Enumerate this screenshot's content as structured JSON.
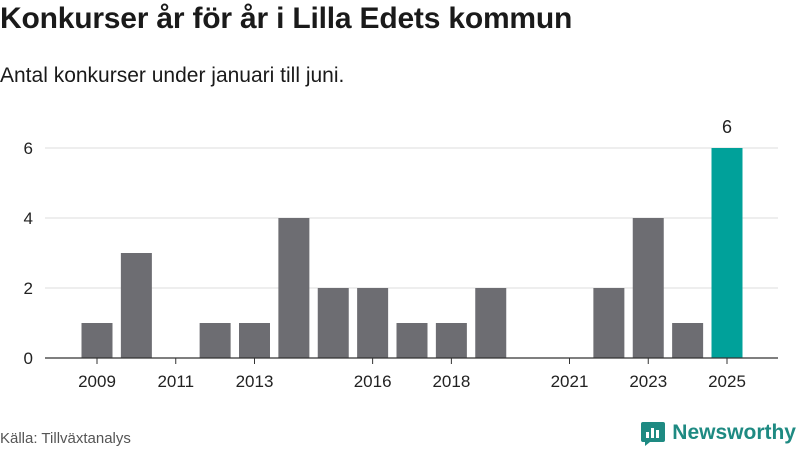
{
  "header": {
    "title": "Konkurser år för år i Lilla Edets kommun",
    "subtitle": "Antal konkurser under januari till juni."
  },
  "footer": {
    "source": "Källa: Tillväxtanalys",
    "brand": "Newsworthy"
  },
  "colors": {
    "bar": "#6d6d72",
    "highlight": "#00a19a",
    "grid": "#dddddd",
    "axis": "#333333",
    "brand": "#1e8a82"
  },
  "icons": {
    "brand_logo": "newsworthy-logo-icon"
  },
  "chart_data": {
    "type": "bar",
    "title": "Konkurser år för år i Lilla Edets kommun",
    "subtitle": "Antal konkurser under januari till juni.",
    "categories": [
      "2009",
      "2010",
      "2011",
      "2012",
      "2013",
      "2014",
      "2015",
      "2016",
      "2017",
      "2018",
      "2019",
      "2020",
      "2021",
      "2022",
      "2023",
      "2024",
      "2025"
    ],
    "values": [
      1,
      3,
      0,
      1,
      1,
      4,
      2,
      2,
      1,
      1,
      2,
      0,
      0,
      2,
      4,
      1,
      6
    ],
    "x_tick_labels": [
      "2009",
      "2011",
      "2013",
      "2016",
      "2018",
      "2021",
      "2023",
      "2025"
    ],
    "y_ticks": [
      0,
      2,
      4,
      6
    ],
    "ylim": [
      0,
      6
    ],
    "highlight_category": "2025",
    "data_labels": [
      {
        "category": "2025",
        "text": "6"
      }
    ],
    "xlabel": "",
    "ylabel": "",
    "grid": "horizontal",
    "legend": "none"
  }
}
